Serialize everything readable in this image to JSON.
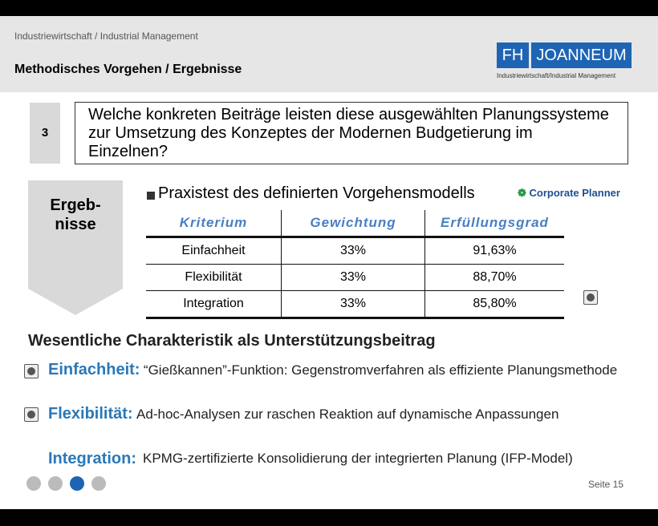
{
  "header": {
    "breadcrumb": "Industriewirtschaft / Industrial Management",
    "title": "Methodisches Vorgehen / Ergebnisse",
    "logo": {
      "fh": "FH",
      "name": "JOANNEUM",
      "subtitle": "Industriewirtschaft/Industrial Management"
    }
  },
  "question": {
    "number": "3",
    "text": "Welche konkreten Beiträge leisten diese ausgewählten Planungssysteme zur Umsetzung des Konzeptes der Modernen Budgetierung im Einzelnen?"
  },
  "result_label": [
    "Ergeb-",
    "nisse"
  ],
  "section": {
    "heading": "Praxistest des definierten Vorgehensmodells",
    "logo": "Corporate Planner"
  },
  "table": {
    "header": [
      "Kriterium",
      "Gewichtung",
      "Erfüllungsgrad"
    ],
    "rows": [
      [
        "Einfachheit",
        "33%",
        "91,63%"
      ],
      [
        "Flexibilität",
        "33%",
        "88,70%"
      ],
      [
        "Integration",
        "33%",
        "85,80%"
      ]
    ]
  },
  "subheading": "Wesentliche Charakteristik als Unterstützungsbeitrag",
  "items": [
    {
      "label": "Einfachheit:",
      "text": "“Gießkannen”-Funktion: Gegenstromverfahren als effiziente Planungsmethode"
    },
    {
      "label": "Flexibilität:",
      "text": "Ad-hoc-Analysen zur raschen Reaktion auf dynamische Anpassungen"
    },
    {
      "label": "Integration:",
      "text": "KPMG-zertifizierte Konsolidierung der integrierten Planung (IFP-Model)"
    }
  ],
  "footer": {
    "page": "Seite 15"
  }
}
